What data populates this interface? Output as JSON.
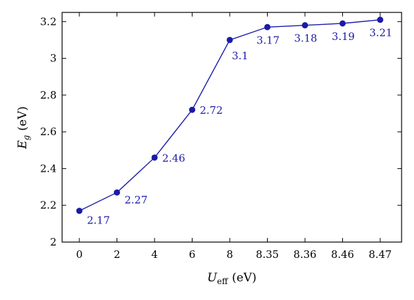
{
  "chart_data": {
    "type": "line",
    "categories": [
      "0",
      "2",
      "4",
      "6",
      "8",
      "8.35",
      "8.36",
      "8.46",
      "8.47"
    ],
    "values": [
      2.17,
      2.27,
      2.46,
      2.72,
      3.1,
      3.17,
      3.18,
      3.19,
      3.21
    ],
    "data_labels": [
      "2.17",
      "2.27",
      "2.46",
      "2.72",
      "3.1",
      "3.17",
      "3.18",
      "3.19",
      "3.21"
    ],
    "xlabel": {
      "main": "U",
      "sub": "eff",
      "unit": "(eV)"
    },
    "ylabel": {
      "main": "E",
      "sub": "g",
      "unit": "(eV)"
    },
    "ylim": [
      2,
      3.25
    ],
    "yticks": [
      "2",
      "2.2",
      "2.4",
      "2.6",
      "2.8",
      "3",
      "3.2"
    ],
    "grid": false,
    "series_color": "#1a1aa8"
  }
}
